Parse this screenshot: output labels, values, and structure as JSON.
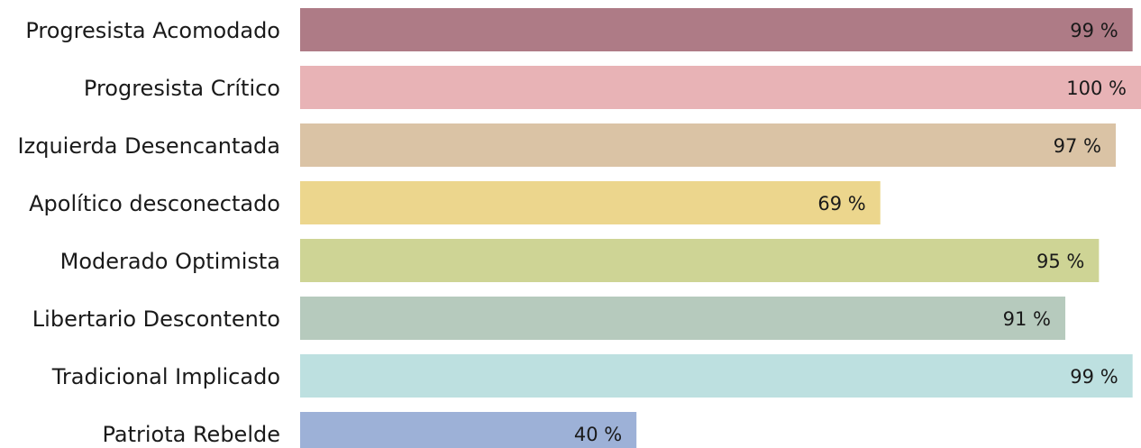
{
  "chart_data": {
    "type": "bar",
    "orientation": "horizontal",
    "categories": [
      "Progresista Acomodado",
      "Progresista Crítico",
      "Izquierda Desencantada",
      "Apolítico desconectado",
      "Moderado Optimista",
      "Libertario Descontento",
      "Tradicional Implicado",
      "Patriota Rebelde"
    ],
    "values": [
      99,
      100,
      97,
      69,
      95,
      91,
      99,
      40
    ],
    "value_labels": [
      "99 %",
      "100 %",
      "97 %",
      "69 %",
      "95 %",
      "91 %",
      "99 %",
      "40 %"
    ],
    "colors": [
      "#ae7b86",
      "#e8b3b6",
      "#dac3a5",
      "#ecd68d",
      "#ced495",
      "#b6cabd",
      "#bde0e0",
      "#9db1d7"
    ],
    "xlim": [
      0,
      100
    ],
    "grid": false,
    "legend": "none"
  }
}
